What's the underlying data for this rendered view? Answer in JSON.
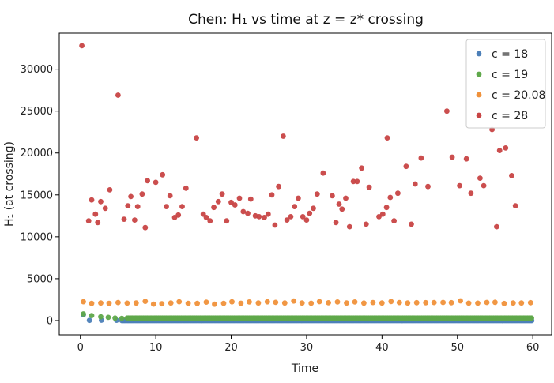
{
  "chart_data": {
    "type": "scatter",
    "title": "Chen: H₁ vs time at z = z* crossing",
    "xlabel": "Time",
    "ylabel": "H₁ (at crossing)",
    "xlim": [
      -2.8,
      62.5
    ],
    "ylim": [
      -1700,
      34300
    ],
    "xticks": [
      0,
      10,
      20,
      30,
      40,
      50,
      60
    ],
    "yticks": [
      0,
      5000,
      10000,
      15000,
      20000,
      25000,
      30000
    ],
    "legend_position": "top-right",
    "grid": false,
    "series": [
      {
        "name": "c = 18",
        "color": "#4c7fb8",
        "pattern": "dense",
        "sparse_points": [
          [
            0.4,
            700
          ],
          [
            1.2,
            20
          ],
          [
            2.8,
            40
          ],
          [
            4.8,
            30
          ]
        ],
        "dense_range": [
          5.5,
          60
        ],
        "dense_step": 0.18,
        "value": 0
      },
      {
        "name": "c = 19",
        "color": "#5fa84a",
        "pattern": "dense",
        "sparse_points": [
          [
            0.4,
            800
          ],
          [
            1.5,
            600
          ],
          [
            2.7,
            450
          ],
          [
            3.7,
            380
          ],
          [
            4.6,
            300
          ],
          [
            5.5,
            270
          ]
        ],
        "dense_range": [
          6.2,
          60
        ],
        "dense_step": 0.18,
        "value": 300
      },
      {
        "name": "c = 20.08",
        "color": "#f0913a",
        "points": [
          [
            0.4,
            2250
          ],
          [
            1.5,
            2050
          ],
          [
            2.7,
            2100
          ],
          [
            3.8,
            2060
          ],
          [
            5.0,
            2150
          ],
          [
            6.2,
            2080
          ],
          [
            7.4,
            2100
          ],
          [
            8.6,
            2300
          ],
          [
            9.7,
            1970
          ],
          [
            10.8,
            2000
          ],
          [
            12.0,
            2100
          ],
          [
            13.1,
            2250
          ],
          [
            14.3,
            2060
          ],
          [
            15.5,
            2050
          ],
          [
            16.7,
            2200
          ],
          [
            17.8,
            1960
          ],
          [
            19.0,
            2060
          ],
          [
            20.1,
            2240
          ],
          [
            21.3,
            2070
          ],
          [
            22.4,
            2220
          ],
          [
            23.6,
            2100
          ],
          [
            24.8,
            2240
          ],
          [
            25.9,
            2170
          ],
          [
            27.1,
            2100
          ],
          [
            28.3,
            2330
          ],
          [
            29.4,
            2100
          ],
          [
            30.6,
            2070
          ],
          [
            31.7,
            2260
          ],
          [
            32.9,
            2130
          ],
          [
            34.1,
            2220
          ],
          [
            35.3,
            2100
          ],
          [
            36.4,
            2220
          ],
          [
            37.6,
            2090
          ],
          [
            38.8,
            2150
          ],
          [
            40.0,
            2100
          ],
          [
            41.2,
            2280
          ],
          [
            42.3,
            2150
          ],
          [
            43.4,
            2100
          ],
          [
            44.6,
            2140
          ],
          [
            45.8,
            2140
          ],
          [
            46.9,
            2150
          ],
          [
            48.1,
            2160
          ],
          [
            49.2,
            2140
          ],
          [
            50.4,
            2350
          ],
          [
            51.5,
            2080
          ],
          [
            52.7,
            2080
          ],
          [
            53.9,
            2160
          ],
          [
            55.0,
            2180
          ],
          [
            56.2,
            2040
          ],
          [
            57.4,
            2100
          ],
          [
            58.5,
            2100
          ],
          [
            59.7,
            2140
          ]
        ]
      },
      {
        "name": "c = 28",
        "color": "#c84444",
        "points": [
          [
            0.2,
            32800
          ],
          [
            1.1,
            11900
          ],
          [
            1.5,
            14400
          ],
          [
            2.0,
            12700
          ],
          [
            2.3,
            11700
          ],
          [
            2.7,
            14200
          ],
          [
            3.3,
            13400
          ],
          [
            3.9,
            15600
          ],
          [
            5.0,
            26900
          ],
          [
            5.8,
            12100
          ],
          [
            6.3,
            13700
          ],
          [
            6.7,
            14800
          ],
          [
            7.2,
            12000
          ],
          [
            7.6,
            13600
          ],
          [
            8.2,
            15100
          ],
          [
            8.6,
            11100
          ],
          [
            8.9,
            16700
          ],
          [
            10.0,
            16500
          ],
          [
            10.9,
            17400
          ],
          [
            11.4,
            13600
          ],
          [
            11.9,
            14900
          ],
          [
            12.5,
            12300
          ],
          [
            13.0,
            12600
          ],
          [
            13.5,
            13600
          ],
          [
            14.0,
            15800
          ],
          [
            15.4,
            21800
          ],
          [
            16.3,
            12700
          ],
          [
            16.7,
            12300
          ],
          [
            17.2,
            11900
          ],
          [
            17.7,
            13500
          ],
          [
            18.3,
            14200
          ],
          [
            18.8,
            15100
          ],
          [
            19.4,
            11900
          ],
          [
            20.0,
            14100
          ],
          [
            20.5,
            13800
          ],
          [
            21.1,
            14600
          ],
          [
            21.6,
            13000
          ],
          [
            22.2,
            12800
          ],
          [
            22.6,
            14500
          ],
          [
            23.2,
            12500
          ],
          [
            23.7,
            12400
          ],
          [
            24.4,
            12300
          ],
          [
            24.9,
            12700
          ],
          [
            25.4,
            15000
          ],
          [
            25.8,
            11400
          ],
          [
            26.3,
            16000
          ],
          [
            26.9,
            22000
          ],
          [
            27.4,
            12000
          ],
          [
            27.9,
            12400
          ],
          [
            28.4,
            13600
          ],
          [
            28.9,
            14600
          ],
          [
            29.5,
            12400
          ],
          [
            30.0,
            12000
          ],
          [
            30.4,
            12800
          ],
          [
            30.9,
            13400
          ],
          [
            31.4,
            15100
          ],
          [
            32.2,
            17600
          ],
          [
            33.4,
            14900
          ],
          [
            33.9,
            11700
          ],
          [
            34.3,
            13900
          ],
          [
            34.7,
            13300
          ],
          [
            35.2,
            14600
          ],
          [
            35.7,
            11200
          ],
          [
            36.2,
            16600
          ],
          [
            36.7,
            16600
          ],
          [
            37.3,
            18200
          ],
          [
            37.9,
            11500
          ],
          [
            38.3,
            15900
          ],
          [
            40.7,
            21800
          ],
          [
            39.6,
            12400
          ],
          [
            40.1,
            12700
          ],
          [
            40.6,
            13500
          ],
          [
            41.1,
            14700
          ],
          [
            41.6,
            11900
          ],
          [
            42.1,
            15200
          ],
          [
            43.2,
            18400
          ],
          [
            43.9,
            11500
          ],
          [
            44.4,
            16300
          ],
          [
            45.2,
            19400
          ],
          [
            46.1,
            16000
          ],
          [
            48.6,
            25000
          ],
          [
            49.3,
            19500
          ],
          [
            50.3,
            16100
          ],
          [
            51.2,
            19300
          ],
          [
            51.8,
            15200
          ],
          [
            53.0,
            17000
          ],
          [
            53.5,
            16100
          ],
          [
            54.6,
            22800
          ],
          [
            55.2,
            11200
          ],
          [
            55.6,
            20300
          ],
          [
            56.4,
            20600
          ],
          [
            57.2,
            17300
          ],
          [
            57.7,
            13700
          ]
        ]
      }
    ]
  }
}
